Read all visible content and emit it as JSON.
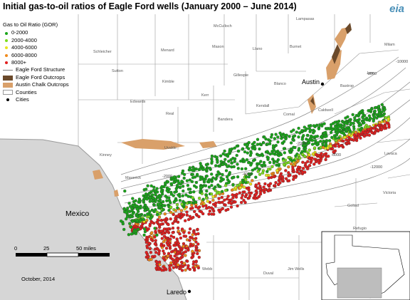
{
  "title": "Initial gas-to-oil ratios of Eagle Ford wells (January 2000 – June 2014)",
  "logo_text": "eia",
  "legend": {
    "title": "Gas to Oil Ratio (GOR)",
    "gor_classes": [
      {
        "label": "0-2000",
        "color": "#1aa51a"
      },
      {
        "label": "2000-4000",
        "color": "#7ddc1f"
      },
      {
        "label": "4000-6000",
        "color": "#e8e41d"
      },
      {
        "label": "6000-8000",
        "color": "#f08a1b"
      },
      {
        "label": "8000+",
        "color": "#e11f1f"
      }
    ],
    "layers": {
      "structure": "Eagle Ford Structure",
      "outcrops": "Eagle Ford Outcrops",
      "chalk": "Austin Chalk Outcrops",
      "counties": "Counties",
      "cities": "Cities"
    }
  },
  "colors": {
    "outcrop": "#6b4a2b",
    "chalk": "#d9a06a",
    "water": "#ffffff",
    "land": "#ffffff",
    "mexico": "#d6d6d6",
    "county_line": "#9a9a9a",
    "contour": "#8a8a8a"
  },
  "cities": [
    {
      "name": "Austin"
    },
    {
      "name": "Laredo"
    }
  ],
  "region_label": "Mexico",
  "county_labels": [
    "Schleicher",
    "Sutton",
    "Edwards",
    "Real",
    "Uvalde",
    "Maverick",
    "Webb",
    "Kinney",
    "Bandera",
    "Kerr",
    "Kendall",
    "Comal",
    "Gillespie",
    "Llano",
    "Mason",
    "Menard",
    "McCulloch",
    "Kimble",
    "Blanco",
    "Burnet",
    "Lampasas",
    "Milam",
    "Lee",
    "Bastrop",
    "Caldwell",
    "Lavaca",
    "Victoria",
    "Goliad",
    "Refugio",
    "Duval",
    "Jim Wells"
  ],
  "contour_labels": [
    "-2000",
    "-4000",
    "-6000",
    "-8000",
    "-10000",
    "-12000"
  ],
  "scale": {
    "ticks": [
      "0",
      "25",
      "50 miles"
    ]
  },
  "date": "October, 2014"
}
